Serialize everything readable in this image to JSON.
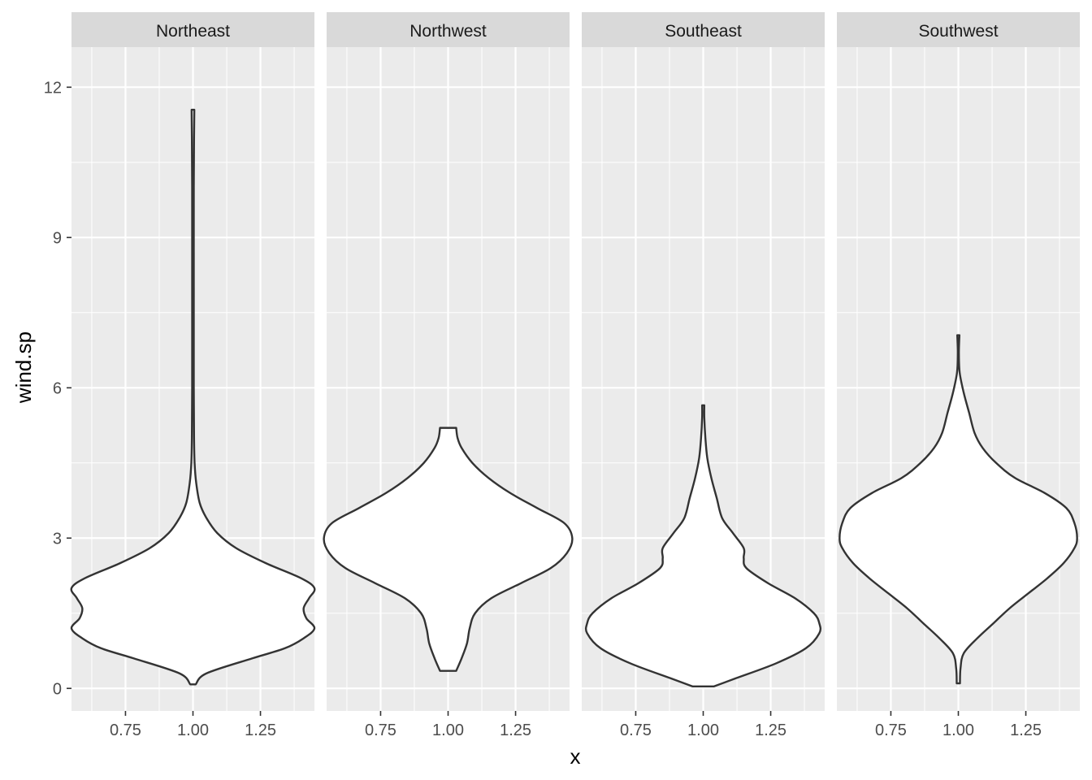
{
  "chart_data": {
    "type": "violin",
    "xlabel": "x",
    "ylabel": "wind.sp",
    "ylim": [
      -0.45,
      12.8
    ],
    "xlim": [
      0.55,
      1.45
    ],
    "y_ticks": [
      0,
      3,
      6,
      9,
      12
    ],
    "y_tick_labels": [
      "0",
      "3",
      "6",
      "9",
      "12"
    ],
    "x_ticks": [
      0.75,
      1.0,
      1.25
    ],
    "x_tick_labels": [
      "0.75",
      "1.00",
      "1.25"
    ],
    "grid": true,
    "panels": [
      {
        "name": "Northeast",
        "center": 1.0,
        "profile": [
          [
            0.08,
            0.01
          ],
          [
            0.3,
            0.05
          ],
          [
            0.6,
            0.22
          ],
          [
            0.8,
            0.34
          ],
          [
            1.0,
            0.41
          ],
          [
            1.2,
            0.45
          ],
          [
            1.4,
            0.42
          ],
          [
            1.6,
            0.41
          ],
          [
            1.8,
            0.43
          ],
          [
            2.0,
            0.45
          ],
          [
            2.2,
            0.4
          ],
          [
            2.5,
            0.27
          ],
          [
            2.8,
            0.16
          ],
          [
            3.1,
            0.09
          ],
          [
            3.4,
            0.05
          ],
          [
            3.7,
            0.025
          ],
          [
            4.1,
            0.012
          ],
          [
            4.5,
            0.006
          ],
          [
            5.0,
            0.004
          ],
          [
            6.0,
            0.003
          ],
          [
            8.0,
            0.003
          ],
          [
            10.0,
            0.003
          ],
          [
            11.0,
            0.004
          ],
          [
            11.55,
            0.005
          ]
        ]
      },
      {
        "name": "Northwest",
        "center": 1.0,
        "profile": [
          [
            0.35,
            0.03
          ],
          [
            0.6,
            0.05
          ],
          [
            0.9,
            0.07
          ],
          [
            1.2,
            0.08
          ],
          [
            1.5,
            0.1
          ],
          [
            1.8,
            0.16
          ],
          [
            2.1,
            0.27
          ],
          [
            2.4,
            0.38
          ],
          [
            2.7,
            0.44
          ],
          [
            3.0,
            0.46
          ],
          [
            3.3,
            0.43
          ],
          [
            3.6,
            0.33
          ],
          [
            3.9,
            0.23
          ],
          [
            4.2,
            0.15
          ],
          [
            4.5,
            0.09
          ],
          [
            4.8,
            0.05
          ],
          [
            5.0,
            0.035
          ],
          [
            5.2,
            0.03
          ]
        ]
      },
      {
        "name": "Southeast",
        "center": 1.0,
        "profile": [
          [
            0.04,
            0.04
          ],
          [
            0.2,
            0.12
          ],
          [
            0.5,
            0.27
          ],
          [
            0.8,
            0.38
          ],
          [
            1.1,
            0.43
          ],
          [
            1.3,
            0.43
          ],
          [
            1.5,
            0.41
          ],
          [
            1.8,
            0.34
          ],
          [
            2.1,
            0.24
          ],
          [
            2.4,
            0.16
          ],
          [
            2.6,
            0.15
          ],
          [
            2.8,
            0.15
          ],
          [
            3.1,
            0.11
          ],
          [
            3.4,
            0.07
          ],
          [
            3.8,
            0.05
          ],
          [
            4.2,
            0.03
          ],
          [
            4.6,
            0.015
          ],
          [
            5.0,
            0.008
          ],
          [
            5.4,
            0.004
          ],
          [
            5.65,
            0.004
          ]
        ]
      },
      {
        "name": "Southwest",
        "center": 1.0,
        "profile": [
          [
            0.1,
            0.006
          ],
          [
            0.4,
            0.008
          ],
          [
            0.7,
            0.02
          ],
          [
            1.0,
            0.07
          ],
          [
            1.3,
            0.13
          ],
          [
            1.6,
            0.19
          ],
          [
            1.9,
            0.26
          ],
          [
            2.2,
            0.33
          ],
          [
            2.5,
            0.39
          ],
          [
            2.8,
            0.43
          ],
          [
            3.0,
            0.44
          ],
          [
            3.3,
            0.43
          ],
          [
            3.6,
            0.4
          ],
          [
            3.9,
            0.32
          ],
          [
            4.2,
            0.21
          ],
          [
            4.5,
            0.14
          ],
          [
            4.8,
            0.09
          ],
          [
            5.1,
            0.06
          ],
          [
            5.5,
            0.04
          ],
          [
            5.9,
            0.02
          ],
          [
            6.3,
            0.005
          ],
          [
            6.7,
            0.002
          ],
          [
            7.05,
            0.004
          ]
        ]
      }
    ]
  }
}
